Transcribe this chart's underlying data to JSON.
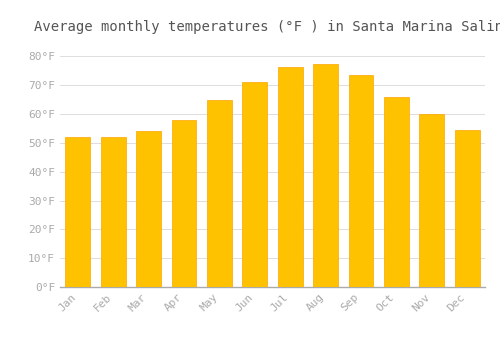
{
  "title": "Average monthly temperatures (°F ) in Santa Marina Salina",
  "months": [
    "Jan",
    "Feb",
    "Mar",
    "Apr",
    "May",
    "Jun",
    "Jul",
    "Aug",
    "Sep",
    "Oct",
    "Nov",
    "Dec"
  ],
  "values": [
    52,
    52,
    54,
    58,
    65,
    71,
    76.5,
    77.5,
    73.5,
    66,
    60,
    54.5
  ],
  "bar_color_main": "#FFC200",
  "bar_color_edge": "#FFA500",
  "background_color": "#FFFFFF",
  "grid_color": "#DDDDDD",
  "ytick_labels": [
    "0°F",
    "10°F",
    "20°F",
    "30°F",
    "40°F",
    "50°F",
    "60°F",
    "70°F",
    "80°F"
  ],
  "ytick_values": [
    0,
    10,
    20,
    30,
    40,
    50,
    60,
    70,
    80
  ],
  "ylim": [
    0,
    85
  ],
  "title_fontsize": 10,
  "tick_fontsize": 8,
  "tick_color": "#AAAAAA",
  "font_family": "monospace"
}
